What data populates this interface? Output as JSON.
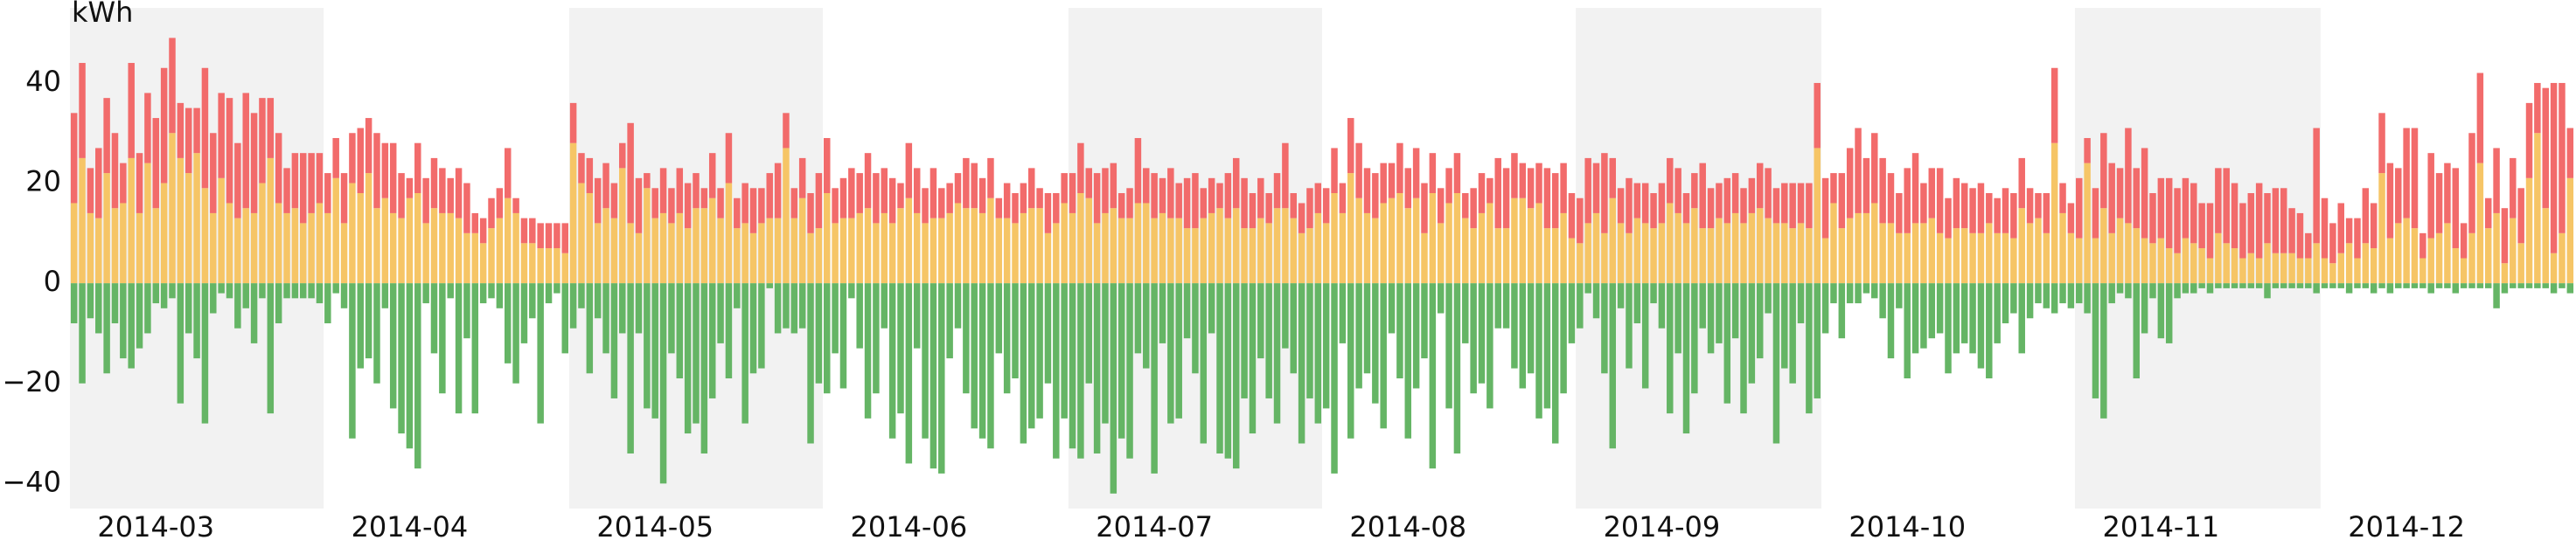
{
  "chart_data": {
    "type": "bar",
    "stacked": true,
    "y_label": "kWh",
    "ylim": [
      -45,
      55
    ],
    "yticks": [
      {
        "value": -40,
        "label": "−40"
      },
      {
        "value": -20,
        "label": "−20"
      },
      0,
      20,
      40
    ],
    "grid": false,
    "shaded_alternate": true,
    "shade_color": "#f2f2f2",
    "categories": [
      "2014-03",
      null,
      null,
      null,
      null,
      null,
      null,
      null,
      null,
      null,
      null,
      null,
      null,
      null,
      null,
      null,
      null,
      null,
      null,
      null,
      null,
      null,
      null,
      null,
      null,
      null,
      null,
      null,
      null,
      null,
      null,
      "2014-04",
      null,
      null,
      null,
      null,
      null,
      null,
      null,
      null,
      null,
      null,
      null,
      null,
      null,
      null,
      null,
      null,
      null,
      null,
      null,
      null,
      null,
      null,
      null,
      null,
      null,
      null,
      null,
      null,
      null,
      "2014-05",
      null,
      null,
      null,
      null,
      null,
      null,
      null,
      null,
      null,
      null,
      null,
      null,
      null,
      null,
      null,
      null,
      null,
      null,
      null,
      null,
      null,
      null,
      null,
      null,
      null,
      null,
      null,
      null,
      null,
      null,
      "2014-06",
      null,
      null,
      null,
      null,
      null,
      null,
      null,
      null,
      null,
      null,
      null,
      null,
      null,
      null,
      null,
      null,
      null,
      null,
      null,
      null,
      null,
      null,
      null,
      null,
      null,
      null,
      null,
      null,
      null,
      "2014-07",
      null,
      null,
      null,
      null,
      null,
      null,
      null,
      null,
      null,
      null,
      null,
      null,
      null,
      null,
      null,
      null,
      null,
      null,
      null,
      null,
      null,
      null,
      null,
      null,
      null,
      null,
      null,
      null,
      null,
      null,
      "2014-08",
      null,
      null,
      null,
      null,
      null,
      null,
      null,
      null,
      null,
      null,
      null,
      null,
      null,
      null,
      null,
      null,
      null,
      null,
      null,
      null,
      null,
      null,
      null,
      null,
      null,
      null,
      null,
      null,
      null,
      null,
      "2014-09",
      null,
      null,
      null,
      null,
      null,
      null,
      null,
      null,
      null,
      null,
      null,
      null,
      null,
      null,
      null,
      null,
      null,
      null,
      null,
      null,
      null,
      null,
      null,
      null,
      null,
      null,
      null,
      null,
      null,
      "2014-10",
      null,
      null,
      null,
      null,
      null,
      null,
      null,
      null,
      null,
      null,
      null,
      null,
      null,
      null,
      null,
      null,
      null,
      null,
      null,
      null,
      null,
      null,
      null,
      null,
      null,
      null,
      null,
      null,
      null,
      null,
      "2014-11",
      null,
      null,
      null,
      null,
      null,
      null,
      null,
      null,
      null,
      null,
      null,
      null,
      null,
      null,
      null,
      null,
      null,
      null,
      null,
      null,
      null,
      null,
      null,
      null,
      null,
      null,
      null,
      null,
      null,
      "2014-12",
      null,
      null,
      null,
      null,
      null,
      null,
      null,
      null,
      null,
      null,
      null,
      null,
      null,
      null,
      null,
      null,
      null,
      null,
      null,
      null,
      null,
      null,
      null,
      null,
      null,
      null,
      null,
      null,
      null,
      null
    ],
    "series": [
      {
        "color": "#f6c566",
        "values": [
          16,
          25,
          14,
          13,
          22,
          15,
          16,
          25,
          14,
          24,
          15,
          20,
          30,
          25,
          22,
          26,
          19,
          14,
          21,
          16,
          13,
          15,
          14,
          20,
          25,
          16,
          14,
          15,
          12,
          14,
          16,
          14,
          21,
          12,
          20,
          18,
          22,
          15,
          17,
          14,
          13,
          17,
          18,
          12,
          15,
          14,
          14,
          13,
          10,
          10,
          8,
          11,
          13,
          17,
          14,
          8,
          8,
          7,
          7,
          7,
          6,
          28,
          20,
          18,
          12,
          15,
          13,
          23,
          12,
          10,
          19,
          13,
          14,
          12,
          14,
          11,
          15,
          15,
          17,
          13,
          20,
          11,
          12,
          10,
          12,
          13,
          13,
          27,
          13,
          17,
          10,
          11,
          18,
          12,
          13,
          13,
          14,
          15,
          12,
          14,
          12,
          15,
          17,
          14,
          12,
          13,
          13,
          14,
          16,
          15,
          15,
          14,
          17,
          13,
          13,
          12,
          14,
          15,
          15,
          10,
          12,
          16,
          14,
          18,
          17,
          12,
          14,
          15,
          13,
          13,
          16,
          16,
          13,
          14,
          13,
          13,
          11,
          11,
          13,
          14,
          15,
          13,
          15,
          11,
          11,
          13,
          12,
          15,
          15,
          13,
          10,
          11,
          14,
          12,
          18,
          14,
          22,
          17,
          14,
          13,
          16,
          17,
          18,
          15,
          17,
          10,
          18,
          12,
          16,
          18,
          13,
          11,
          14,
          16,
          11,
          11,
          17,
          17,
          15,
          16,
          11,
          11,
          14,
          9,
          8,
          12,
          14,
          10,
          17,
          12,
          10,
          13,
          12,
          11,
          12,
          16,
          14,
          12,
          15,
          11,
          11,
          13,
          12,
          14,
          12,
          14,
          15,
          13,
          12,
          12,
          11,
          12,
          11,
          27,
          9,
          16,
          11,
          13,
          14,
          14,
          16,
          12,
          12,
          10,
          10,
          12,
          12,
          13,
          10,
          9,
          11,
          11,
          10,
          10,
          12,
          10,
          10,
          9,
          15,
          12,
          13,
          10,
          28,
          14,
          10,
          9,
          24,
          9,
          15,
          10,
          13,
          12,
          11,
          9,
          8,
          9,
          7,
          6,
          9,
          8,
          7,
          5,
          10,
          8,
          7,
          5,
          6,
          5,
          8,
          6,
          6,
          6,
          5,
          5,
          8,
          5,
          4,
          6,
          8,
          5,
          8,
          7,
          22,
          9,
          12,
          13,
          11,
          5,
          9,
          10,
          12,
          7,
          5,
          10,
          24,
          11,
          14,
          4,
          13,
          8,
          21,
          30,
          15,
          6,
          10,
          21
        ]
      },
      {
        "color": "#f26b6b",
        "values": [
          18,
          19,
          9,
          14,
          15,
          15,
          8,
          19,
          12,
          14,
          18,
          23,
          19,
          11,
          13,
          9,
          24,
          16,
          17,
          21,
          15,
          23,
          20,
          17,
          12,
          14,
          9,
          11,
          14,
          12,
          10,
          8,
          8,
          10,
          10,
          13,
          11,
          15,
          11,
          14,
          9,
          4,
          10,
          9,
          10,
          9,
          7,
          10,
          10,
          4,
          5,
          6,
          6,
          10,
          3,
          5,
          5,
          5,
          5,
          5,
          6,
          8,
          6,
          7,
          9,
          9,
          7,
          5,
          20,
          11,
          3,
          6,
          9,
          7,
          9,
          9,
          7,
          4,
          9,
          6,
          10,
          6,
          8,
          9,
          7,
          9,
          11,
          7,
          6,
          8,
          8,
          11,
          11,
          7,
          8,
          10,
          8,
          11,
          10,
          9,
          9,
          5,
          11,
          9,
          7,
          10,
          6,
          6,
          6,
          10,
          9,
          7,
          8,
          4,
          7,
          6,
          6,
          8,
          4,
          8,
          6,
          6,
          8,
          10,
          6,
          10,
          9,
          9,
          5,
          6,
          13,
          7,
          9,
          7,
          10,
          7,
          10,
          11,
          6,
          7,
          5,
          9,
          10,
          10,
          7,
          8,
          6,
          7,
          13,
          5,
          6,
          8,
          6,
          7,
          9,
          6,
          11,
          11,
          9,
          9,
          8,
          7,
          10,
          8,
          10,
          10,
          8,
          7,
          7,
          8,
          5,
          8,
          8,
          5,
          14,
          12,
          9,
          7,
          8,
          8,
          12,
          11,
          10,
          9,
          9,
          13,
          10,
          16,
          8,
          7,
          11,
          7,
          8,
          7,
          8,
          9,
          9,
          6,
          7,
          13,
          8,
          7,
          9,
          8,
          7,
          7,
          9,
          10,
          7,
          8,
          9,
          8,
          9,
          13,
          12,
          6,
          11,
          14,
          17,
          11,
          14,
          13,
          10,
          8,
          13,
          14,
          8,
          10,
          13,
          8,
          10,
          9,
          9,
          10,
          6,
          7,
          9,
          9,
          10,
          7,
          5,
          8,
          15,
          6,
          6,
          12,
          5,
          10,
          15,
          14,
          10,
          19,
          12,
          18,
          10,
          12,
          14,
          13,
          12,
          12,
          9,
          11,
          13,
          15,
          13,
          11,
          12,
          15,
          10,
          13,
          13,
          9,
          9,
          5,
          23,
          12,
          8,
          10,
          5,
          8,
          11,
          9,
          12,
          15,
          11,
          18,
          20,
          5,
          17,
          12,
          12,
          16,
          7,
          20,
          18,
          6,
          13,
          11,
          12,
          11,
          15,
          10,
          24,
          34,
          30,
          10
        ]
      },
      {
        "color": "#65b565",
        "values": [
          -8,
          -20,
          -7,
          -10,
          -18,
          -8,
          -15,
          -17,
          -13,
          -10,
          -4,
          -5,
          -3,
          -24,
          -10,
          -15,
          -28,
          -6,
          -2,
          -3,
          -9,
          -5,
          -12,
          -3,
          -26,
          -8,
          -3,
          -3,
          -3,
          -3,
          -4,
          -8,
          -2,
          -5,
          -31,
          -17,
          -15,
          -20,
          -5,
          -25,
          -30,
          -33,
          -37,
          -4,
          -14,
          -22,
          -3,
          -26,
          -11,
          -26,
          -4,
          -3,
          -5,
          -16,
          -20,
          -12,
          -7,
          -28,
          -4,
          -2,
          -14,
          -9,
          -5,
          -18,
          -7,
          -14,
          -23,
          -10,
          -34,
          -10,
          -25,
          -27,
          -40,
          -14,
          -19,
          -30,
          -28,
          -34,
          -23,
          -12,
          -19,
          -5,
          -28,
          -18,
          -17,
          -1,
          -10,
          -9,
          -10,
          -9,
          -32,
          -20,
          -22,
          -14,
          -21,
          -3,
          -13,
          -27,
          -22,
          -9,
          -31,
          -26,
          -36,
          -13,
          -31,
          -37,
          -38,
          -15,
          -9,
          -22,
          -29,
          -31,
          -33,
          -14,
          -22,
          -19,
          -32,
          -29,
          -27,
          -20,
          -35,
          -27,
          -33,
          -35,
          -20,
          -34,
          -28,
          -42,
          -31,
          -35,
          -14,
          -17,
          -38,
          -12,
          -28,
          -27,
          -11,
          -18,
          -32,
          -10,
          -34,
          -35,
          -37,
          -23,
          -30,
          -15,
          -23,
          -28,
          -13,
          -18,
          -32,
          -23,
          -28,
          -25,
          -38,
          -12,
          -31,
          -21,
          -18,
          -24,
          -29,
          -10,
          -19,
          -31,
          -21,
          -15,
          -37,
          -6,
          -25,
          -34,
          -12,
          -22,
          -20,
          -25,
          -9,
          -9,
          -17,
          -21,
          -18,
          -27,
          -25,
          -32,
          -22,
          -12,
          -9,
          -2,
          -7,
          -18,
          -33,
          -5,
          -17,
          -8,
          -21,
          -4,
          -9,
          -26,
          -14,
          -30,
          -22,
          -9,
          -14,
          -12,
          -24,
          -11,
          -26,
          -20,
          -15,
          -6,
          -32,
          -17,
          -20,
          -8,
          -26,
          -23,
          -10,
          -4,
          -11,
          -4,
          -4,
          -2,
          -3,
          -7,
          -15,
          -5,
          -19,
          -14,
          -13,
          -11,
          -10,
          -18,
          -14,
          -12,
          -14,
          -17,
          -19,
          -12,
          -8,
          -6,
          -14,
          -7,
          -4,
          -5,
          -6,
          -4,
          -5,
          -4,
          -6,
          -23,
          -27,
          -4,
          -2,
          -3,
          -19,
          -10,
          -3,
          -11,
          -12,
          -3,
          -2,
          -2,
          -1,
          -2,
          -1,
          -1,
          -1,
          -1,
          -1,
          -1,
          -3,
          -1,
          -1,
          -1,
          -1,
          -1,
          -2,
          -1,
          -1,
          -1,
          -2,
          -1,
          -1,
          -2,
          -1,
          -2,
          -1,
          -1,
          -1,
          -1,
          -2,
          -1,
          -1,
          -2,
          -1,
          -1,
          -1,
          -1,
          -5,
          -2,
          -1,
          -1,
          -1,
          -1,
          -1,
          -2,
          -1,
          -2
        ]
      }
    ]
  }
}
